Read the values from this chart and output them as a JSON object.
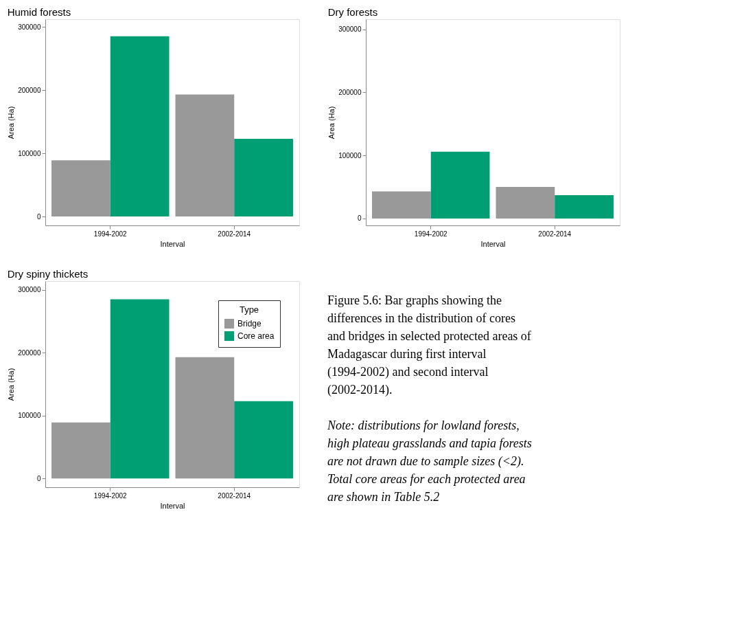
{
  "chart_data": [
    {
      "type": "bar",
      "title": "Humid forests",
      "xlabel": "Interval",
      "ylabel": "Area (Ha)",
      "categories": [
        "1994-2002",
        "2002-2014"
      ],
      "series": [
        {
          "color": "#999999",
          "values": [
            89000,
            193000
          ]
        },
        {
          "color": "#009e73",
          "values": [
            285000,
            123000
          ]
        }
      ],
      "ylim": [
        -14000,
        312000
      ],
      "yticks": [
        0,
        100000,
        200000,
        300000
      ],
      "grid": false,
      "legend": false
    },
    {
      "type": "bar",
      "title": "Dry forests",
      "xlabel": "Interval",
      "ylabel": "Area (Ha)",
      "categories": [
        "1994-2002",
        "2002-2014"
      ],
      "series": [
        {
          "color": "#999999",
          "values": [
            43000,
            50000
          ]
        },
        {
          "color": "#009e73",
          "values": [
            106000,
            37000
          ]
        }
      ],
      "ylim": [
        -11000,
        316000
      ],
      "yticks": [
        0,
        100000,
        200000,
        300000
      ],
      "grid": false,
      "legend": false
    },
    {
      "type": "bar",
      "title": "Dry spiny thickets",
      "xlabel": "Interval",
      "ylabel": "Area (Ha)",
      "legend_title": "Type",
      "categories": [
        "1994-2002",
        "2002-2014"
      ],
      "series": [
        {
          "name": "Bridge",
          "color": "#999999",
          "values": [
            89000,
            193000
          ]
        },
        {
          "name": "Core area",
          "color": "#009e73",
          "values": [
            285000,
            123000
          ]
        }
      ],
      "ylim": [
        -14000,
        314000
      ],
      "yticks": [
        0,
        100000,
        200000,
        300000
      ],
      "grid": false,
      "legend": "top right",
      "annotations": [
        "Figure 5.6: Bar graphs showing the differences in the distribution of cores and bridges in selected protected areas of Madagascar during first interval (1994-2002) and second interval (2002-2014).",
        "Note: distributions for lowland forests, high plateau grasslands and tapia forests are not drawn due to sample sizes (<2). Total core areas for each protected area are shown in Table 5.2"
      ]
    }
  ]
}
